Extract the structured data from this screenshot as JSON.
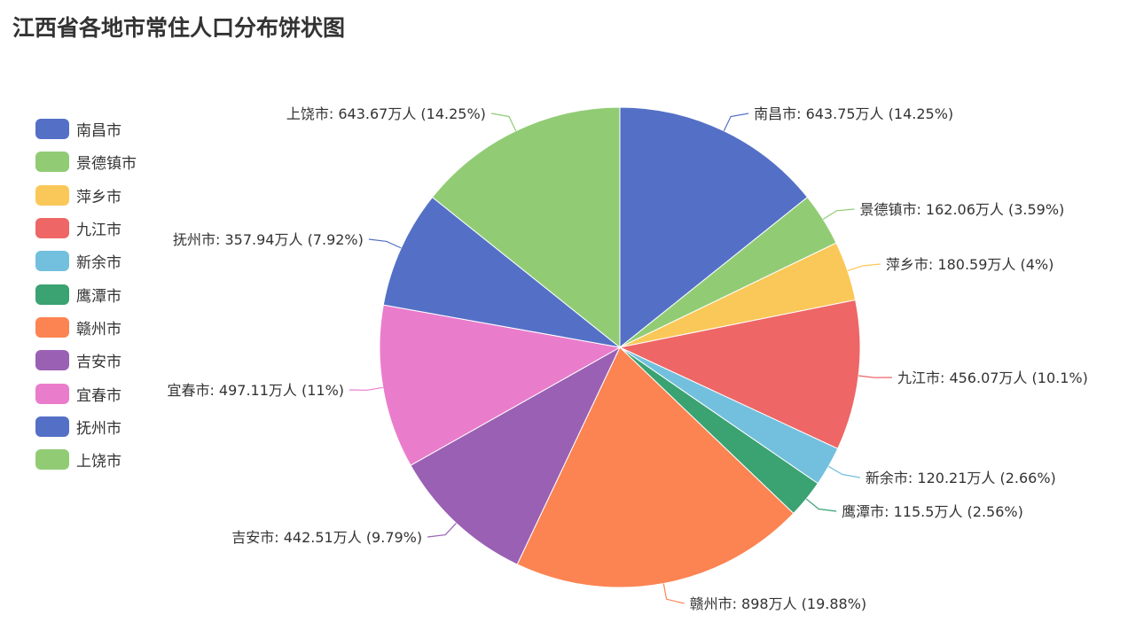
{
  "page": {
    "title": "江西省各地市常住人口分布饼状图"
  },
  "chart_data": {
    "type": "pie",
    "title": "江西省各地市常住人口分布饼状图",
    "legend_position": "left",
    "categories": [
      "南昌市",
      "景德镇市",
      "萍乡市",
      "九江市",
      "新余市",
      "鹰潭市",
      "赣州市",
      "吉安市",
      "宜春市",
      "抚州市",
      "上饶市"
    ],
    "values": [
      643.75,
      162.06,
      180.59,
      456.07,
      120.21,
      115.5,
      898,
      442.51,
      497.11,
      357.94,
      643.67
    ],
    "unit": "万人",
    "labels": [
      "南昌市: 643.75万人 (14.25%)",
      "景德镇市: 162.06万人 (3.59%)",
      "萍乡市: 180.59万人 (4%)",
      "九江市: 456.07万人 (10.1%)",
      "新余市: 120.21万人 (2.66%)",
      "鹰潭市: 115.5万人 (2.56%)",
      "赣州市: 898万人 (19.88%)",
      "吉安市: 442.51万人 (9.79%)",
      "宜春市: 497.11万人 (11%)",
      "抚州市: 357.94万人 (7.92%)",
      "上饶市: 643.67万人 (14.25%)"
    ],
    "colors": [
      "#5470c6",
      "#91cc75",
      "#fac858",
      "#ee6666",
      "#73c0de",
      "#3ba272",
      "#fc8452",
      "#9a60b4",
      "#ea7ccc",
      "#5470c6",
      "#91cc75"
    ]
  }
}
